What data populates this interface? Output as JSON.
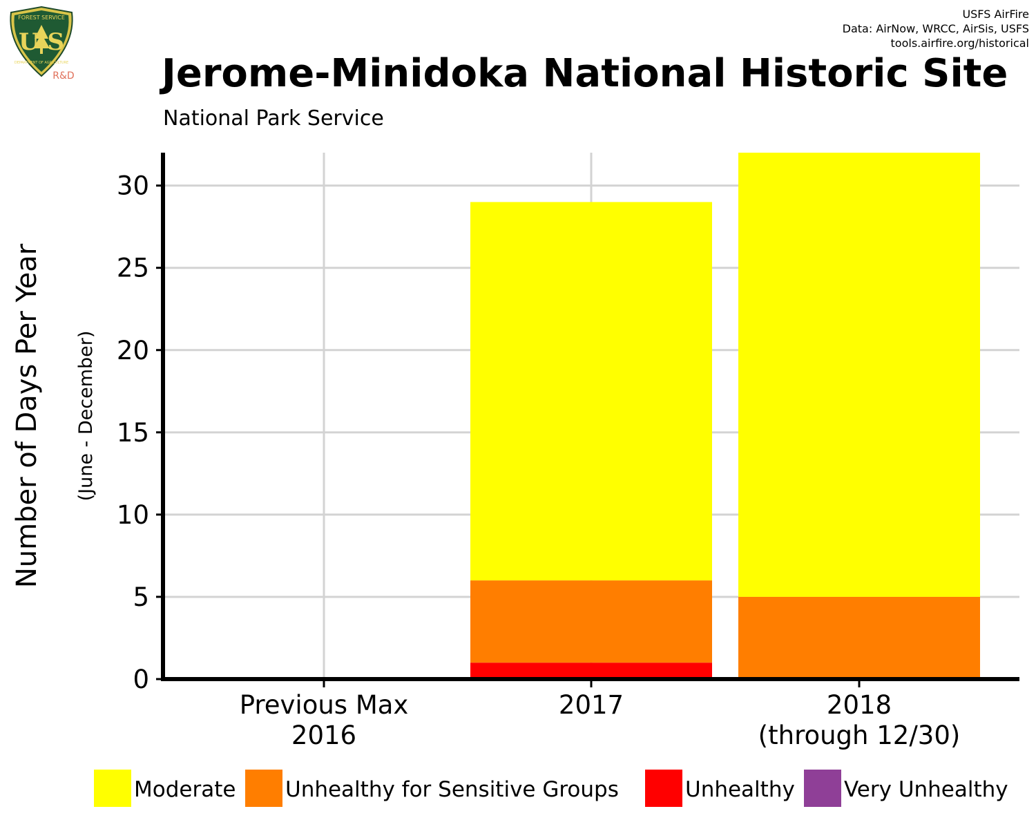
{
  "credits": {
    "line1": "USFS AirFire",
    "line2": "Data: AirNow, WRCC, AirSis, USFS",
    "line3": "tools.airfire.org/historical"
  },
  "logo": {
    "top_text": "FOREST SERVICE",
    "letters": "U S",
    "bottom_text": "DEPARTMENT OF AGRICULTURE",
    "tag": "R&D"
  },
  "title": "Jerome-Minidoka National Historic Site",
  "subtitle": "National Park Service",
  "chart_data": {
    "type": "bar",
    "stacked": true,
    "categories": [
      [
        "Previous Max",
        "2016"
      ],
      [
        "2017"
      ],
      [
        "2018",
        "(through 12/30)"
      ]
    ],
    "series": [
      {
        "name": "Unhealthy",
        "color": "#ff0000",
        "values": [
          0,
          1,
          0
        ]
      },
      {
        "name": "Unhealthy for Sensitive Groups",
        "color": "#ff7e00",
        "values": [
          0,
          5,
          5
        ]
      },
      {
        "name": "Moderate",
        "color": "#ffff00",
        "values": [
          0,
          23,
          27
        ]
      }
    ],
    "legend": [
      {
        "name": "Moderate",
        "color": "#ffff00"
      },
      {
        "name": "Unhealthy for Sensitive Groups",
        "color": "#ff7e00"
      },
      {
        "name": "Unhealthy",
        "color": "#ff0000"
      },
      {
        "name": "Very Unhealthy",
        "color": "#8f3f97"
      }
    ],
    "legend_position": "bottom",
    "ylabel": "Number of Days Per Year",
    "ylabel_sub": "(June - December)",
    "yticks": [
      0,
      5,
      10,
      15,
      20,
      25,
      30
    ],
    "ylim": [
      0,
      32
    ],
    "grid": true
  }
}
